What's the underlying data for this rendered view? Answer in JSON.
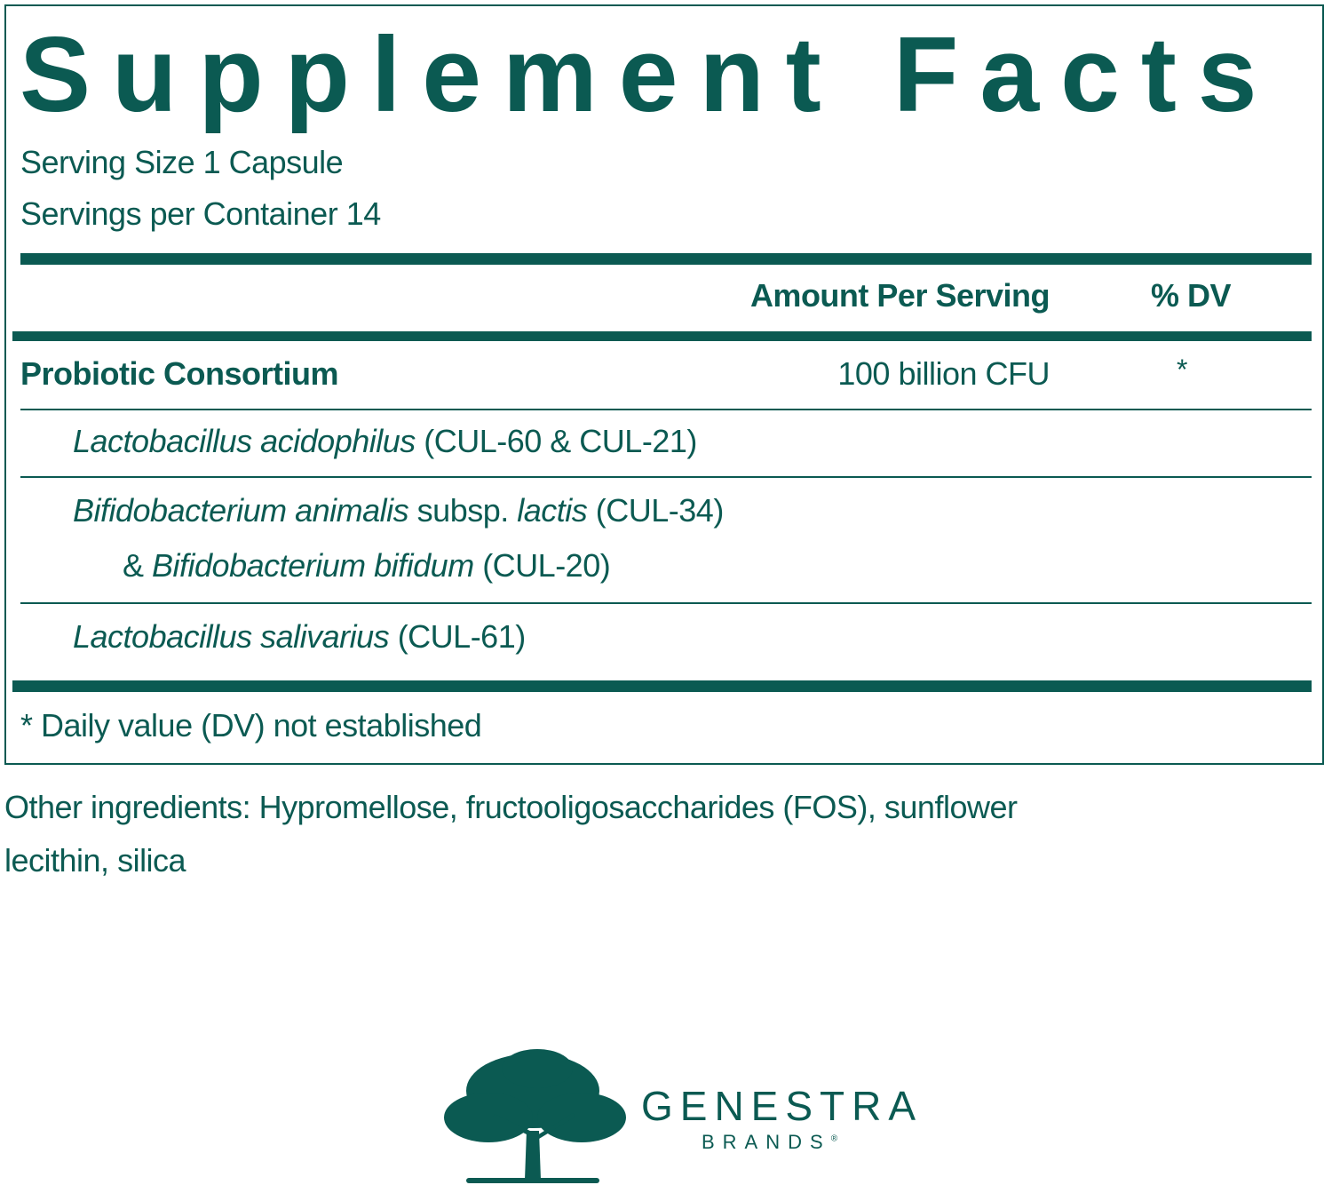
{
  "title": "Supplement Facts",
  "serving_size": "Serving Size 1 Capsule",
  "servings_per_container": "Servings per Container 14",
  "header": {
    "amount": "Amount Per Serving",
    "dv": "% DV"
  },
  "main_ingredient": {
    "name": "Probiotic Consortium",
    "amount": "100 billion CFU",
    "dv": "*"
  },
  "strains": [
    {
      "lines": [
        [
          {
            "t": "Lactobacillus acidophilus",
            "i": true
          },
          {
            "t": " (CUL-60 & CUL-21)",
            "i": false
          }
        ]
      ]
    },
    {
      "lines": [
        [
          {
            "t": "Bifidobacterium animalis",
            "i": true
          },
          {
            "t": " subsp. ",
            "i": false
          },
          {
            "t": "lactis",
            "i": true
          },
          {
            "t": " (CUL-34)",
            "i": false
          }
        ],
        [
          {
            "t": "& ",
            "i": false
          },
          {
            "t": "Bifidobacterium bifidum",
            "i": true
          },
          {
            "t": " (CUL-20)",
            "i": false
          }
        ]
      ]
    },
    {
      "lines": [
        [
          {
            "t": "Lactobacillus salivarius",
            "i": true
          },
          {
            "t": " (CUL-61)",
            "i": false
          }
        ]
      ]
    }
  ],
  "footnote": "* Daily value (DV) not established",
  "other_ingredients": {
    "line1": "Other ingredients: Hypromellose, fructooligosaccharides (FOS), sunflower",
    "line2": "lecithin, silica"
  },
  "logo": {
    "brand": "GENESTRA",
    "sub": "BRANDS",
    "mark": "®",
    "icon": "oak-tree-icon"
  },
  "colors": {
    "primary": "#0b5a52"
  }
}
